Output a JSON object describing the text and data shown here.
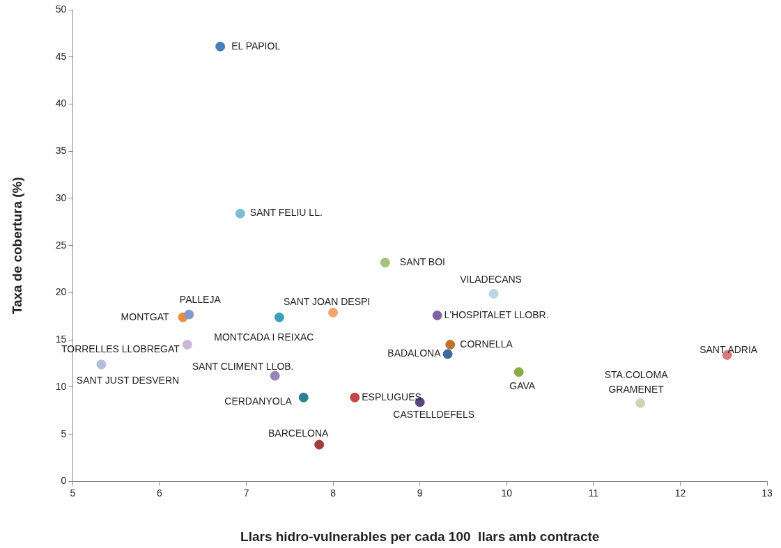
{
  "chart_data": {
    "type": "scatter",
    "xlabel": "Llars hidro-vulnerables per cada 100  llars amb contracte",
    "ylabel": "Taxa de cobertura (%)",
    "xlim": [
      5,
      13
    ],
    "xticks": [
      5,
      6,
      7,
      8,
      9,
      10,
      11,
      12,
      13
    ],
    "ylim": [
      0,
      50
    ],
    "yticks": [
      0,
      5,
      10,
      15,
      20,
      25,
      30,
      35,
      40,
      45,
      50
    ],
    "grid": false,
    "legend": false,
    "marker": "circle",
    "series": [
      {
        "name": "EL PAPIOL",
        "color": "#4a7ebb",
        "x": [
          6.7
        ],
        "values": [
          46.1
        ]
      },
      {
        "name": "SANT FELIU LL.",
        "color": "#7cbcd6",
        "x": [
          6.93
        ],
        "values": [
          28.4
        ]
      },
      {
        "name": "SANT BOI",
        "color": "#a3c27a",
        "x": [
          8.6
        ],
        "values": [
          23.2
        ]
      },
      {
        "name": "VILADECANS",
        "color": "#b7d7e3",
        "x": [
          9.85
        ],
        "values": [
          19.9
        ]
      },
      {
        "name": "SANT JOAN DESPI",
        "color": "#f7a46f",
        "x": [
          8.0
        ],
        "values": [
          17.9
        ]
      },
      {
        "name": "L'HOSPITALET LLOBR.",
        "color": "#8064a2",
        "x": [
          9.2
        ],
        "values": [
          17.6
        ]
      },
      {
        "name": "PALLEJA",
        "color": "#7f9bcc",
        "x": [
          6.34
        ],
        "values": [
          17.7
        ]
      },
      {
        "name": "MONTGAT",
        "color": "#ed8a3c",
        "x": [
          6.27
        ],
        "values": [
          17.4
        ]
      },
      {
        "name": "MONTCADA I REIXAC",
        "color": "#3aa0bd",
        "x": [
          7.38
        ],
        "values": [
          17.4
        ]
      },
      {
        "name": "TORRELLES LLOBREGAT",
        "color": "#c9b9d6",
        "x": [
          6.32
        ],
        "values": [
          14.5
        ]
      },
      {
        "name": "CORNELLA",
        "color": "#c0712a",
        "x": [
          9.35
        ],
        "values": [
          14.5
        ]
      },
      {
        "name": "BADALONA",
        "color": "#3d68a0",
        "x": [
          9.32
        ],
        "values": [
          13.5
        ]
      },
      {
        "name": "SANT ADRIA",
        "color": "#d9787a",
        "x": [
          12.54
        ],
        "values": [
          13.4
        ]
      },
      {
        "name": "SANT JUST DESVERN",
        "color": "#b0bfdc",
        "x": [
          5.33
        ],
        "values": [
          12.4
        ]
      },
      {
        "name": "GAVA",
        "color": "#8aaa48",
        "x": [
          10.14
        ],
        "values": [
          11.6
        ]
      },
      {
        "name": "SANT CLIMENT LLOB.",
        "color": "#9a86b5",
        "x": [
          7.33
        ],
        "values": [
          11.2
        ]
      },
      {
        "name": "CERDANYOLA",
        "color": "#2e7f92",
        "x": [
          7.66
        ],
        "values": [
          8.9
        ]
      },
      {
        "name": "ESPLUGUES",
        "color": "#c0474a",
        "x": [
          8.25
        ],
        "values": [
          8.9
        ]
      },
      {
        "name": "CASTELLDEFELS",
        "color": "#5b4780",
        "x": [
          9.0
        ],
        "values": [
          8.4
        ]
      },
      {
        "name": "STA.COLOMA\nGRAMENET",
        "color": "#c8d9b2",
        "x": [
          11.54
        ],
        "values": [
          8.3
        ]
      },
      {
        "name": "BARCELONA",
        "color": "#a33b3b",
        "x": [
          7.84
        ],
        "values": [
          3.9
        ]
      }
    ]
  }
}
